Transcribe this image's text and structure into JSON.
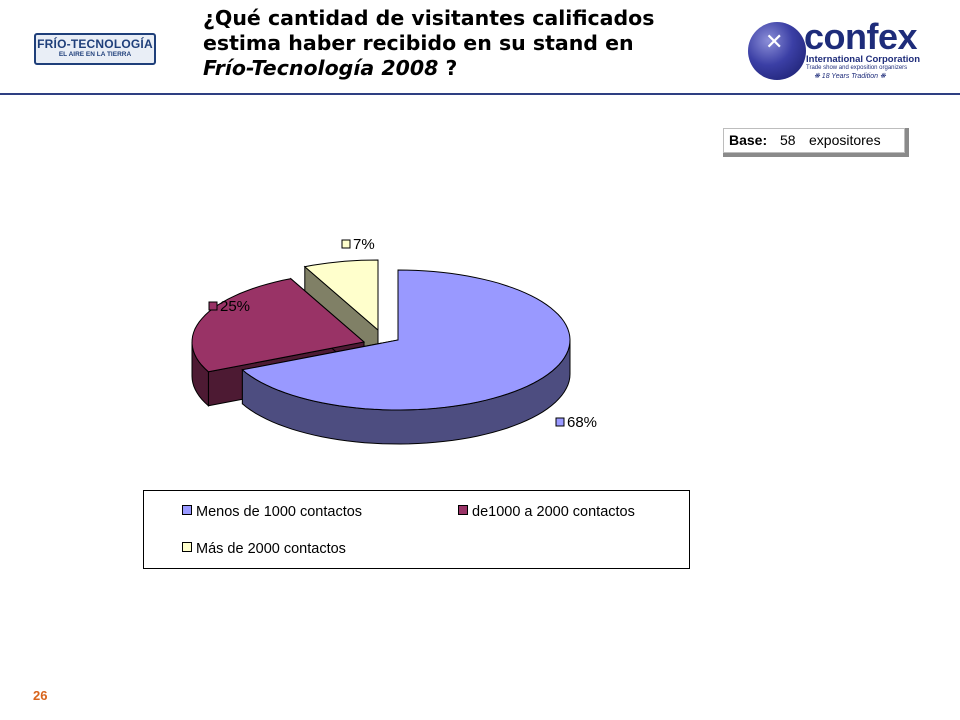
{
  "header": {
    "title_line1": "¿Qué cantidad de visitantes calificados",
    "title_line2": "estima haber recibido en su stand en",
    "title_line3_em": "Frío-Tecnología 2008",
    "title_line3_tail": " ?"
  },
  "logo_left": {
    "line1": "FRÍO-TECNOLOGÍA",
    "line2": "EL AIRE EN LA TIERRA"
  },
  "logo_right": {
    "brand": "confex",
    "line1": "International Corporation",
    "line2": "Trade show and exposition organizers",
    "line3": "❋ 18 Years Tradition ❋"
  },
  "base": {
    "label": "Base:",
    "value": "58",
    "unit": "expositores"
  },
  "colors": {
    "series": [
      "#9999ff",
      "#993366",
      "#ffffcc"
    ],
    "header_rule": "#2e3f82"
  },
  "chart_data": {
    "type": "pie",
    "title": "",
    "categories": [
      "Menos de 1000 contactos",
      "de1000 a 2000 contactos",
      "Más de 2000 contactos"
    ],
    "values": [
      68,
      25,
      7
    ],
    "labels": [
      "68%",
      "25%",
      "7%"
    ],
    "legend_position": "bottom"
  },
  "footer": {
    "page_number": "26"
  }
}
